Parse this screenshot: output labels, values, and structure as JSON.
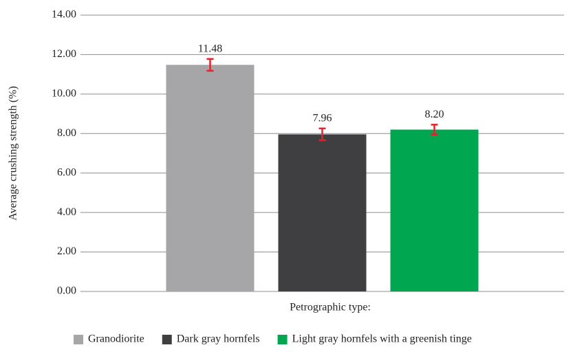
{
  "chart_data": {
    "type": "bar",
    "x_label": "Petrographic type:",
    "y_label": "Average crushing strength (%)",
    "categories": [
      null
    ],
    "series": [
      {
        "name": "Granodiorite",
        "color": "#a6a6a8",
        "values": [
          11.48
        ],
        "value_labels": [
          "11.48"
        ],
        "errors": [
          0.3
        ]
      },
      {
        "name": "Dark gray hornfels",
        "color": "#3f3f41",
        "values": [
          7.96
        ],
        "value_labels": [
          "7.96"
        ],
        "errors": [
          0.3
        ]
      },
      {
        "name": "Light gray hornfels with a greenish tinge",
        "color": "#00a650",
        "values": [
          8.2
        ],
        "value_labels": [
          "8.20"
        ],
        "errors": [
          0.25
        ]
      }
    ],
    "error_color": "#e8202a",
    "ylim": [
      0,
      14
    ],
    "yticks": [
      {
        "value": 0,
        "label": "0.00"
      },
      {
        "value": 2,
        "label": "2.00"
      },
      {
        "value": 4,
        "label": "4.00"
      },
      {
        "value": 6,
        "label": "6.00"
      },
      {
        "value": 8,
        "label": "8.00"
      },
      {
        "value": 10,
        "label": "10.00"
      },
      {
        "value": 12,
        "label": "12.00"
      },
      {
        "value": 14,
        "label": "14.00"
      }
    ],
    "grid": true,
    "legend": "bottom"
  }
}
